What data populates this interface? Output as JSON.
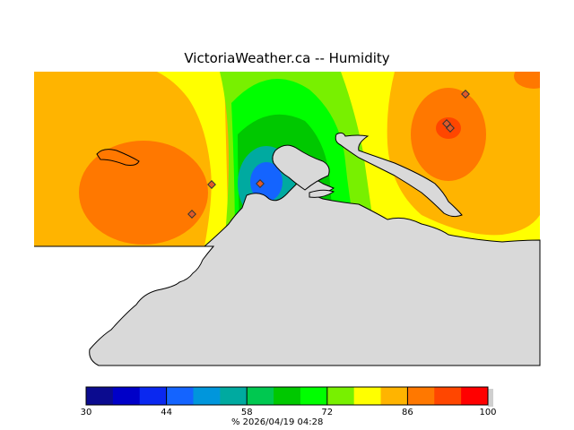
{
  "title": "VictoriaWeather.ca  --  Humidity",
  "legend": {
    "ticks": [
      "30",
      "44",
      "58",
      "72",
      "86",
      "100"
    ],
    "units": "%",
    "timestamp": "2026/04/19 04:28",
    "range": [
      30,
      100
    ],
    "colors": [
      "#0b0b8f",
      "#0000c8",
      "#0a28f0",
      "#1464ff",
      "#0096dc",
      "#00aaa0",
      "#00c850",
      "#00c800",
      "#00ff00",
      "#78f000",
      "#ffff00",
      "#ffb400",
      "#ff7800",
      "#ff4600",
      "#ff0000"
    ]
  },
  "map": {
    "land_color": "#d9d9d9",
    "coast_color": "#000000",
    "station_color": "#e05a2a"
  }
}
